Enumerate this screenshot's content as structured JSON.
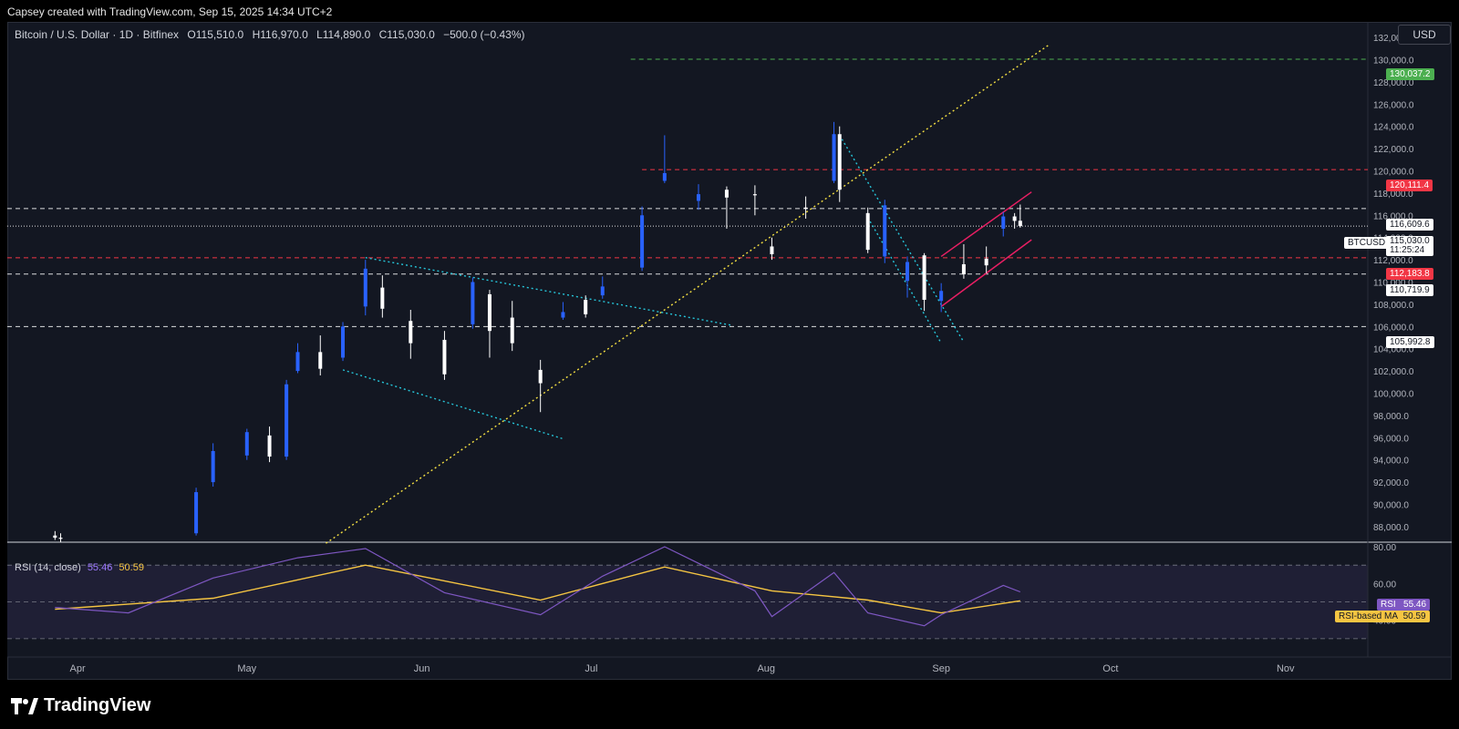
{
  "header": {
    "attribution": "Capsey created with TradingView.com, Sep 15, 2025 14:34 UTC+2"
  },
  "legend": {
    "symbol": "Bitcoin / U.S. Dollar · 1D · Bitfinex",
    "open": "O115,510.0",
    "high": "H116,970.0",
    "low": "L114,890.0",
    "close": "C115,030.0",
    "change": "−500.0 (−0.43%)"
  },
  "currency_button": "USD",
  "rsi_legend": {
    "label": "RSI (14, close)",
    "rsi_value": "55.46",
    "ma_value": "50.59"
  },
  "price_tags": {
    "level_130037": "130,037.2",
    "level_120111": "120,111.4",
    "level_116609": "116,609.6",
    "last_price": "115,030.0",
    "countdown": "11:25:24",
    "symbol_label": "BTCUSD",
    "level_112183": "112,183.8",
    "level_110719": "110,719.9",
    "level_105992": "105,992.8",
    "rsi_tag_label": "RSI",
    "rsi_tag_value": "55.46",
    "ma_tag_label": "RSI-based MA",
    "ma_tag_value": "50.59"
  },
  "brand": {
    "name": "TradingView"
  },
  "colors": {
    "up": "#2962ff",
    "down": "#ffffff",
    "background": "#131722",
    "green_line": "#4caf50",
    "red_line": "#f23645",
    "pink_channel": "#e91e63",
    "cyan_line": "#26c6da",
    "yellow_line": "#f5e042",
    "rsi": "#7e57c2",
    "rsi_ma": "#f5c542"
  },
  "chart_data": {
    "type": "candlestick",
    "title": "Bitcoin / U.S. Dollar · 1D · Bitfinex",
    "price_axis": {
      "ticks": [
        "132,000.0",
        "130,000.0",
        "128,000.0",
        "126,000.0",
        "124,000.0",
        "122,000.0",
        "120,000.0",
        "118,000.0",
        "116,000.0",
        "114,000.0",
        "112,000.0",
        "110,000.0",
        "108,000.0",
        "106,000.0",
        "104,000.0",
        "102,000.0",
        "100,000.0",
        "98,000.0",
        "96,000.0",
        "94,000.0",
        "92,000.0",
        "90,000.0",
        "88,000.0"
      ],
      "range": [
        86600,
        133400
      ]
    },
    "time_axis": {
      "labels": [
        "Apr",
        "May",
        "Jun",
        "Jul",
        "Aug",
        "Sep",
        "Oct",
        "Nov"
      ]
    },
    "horizontal_levels": [
      {
        "value": 130037.2,
        "style": "dashed",
        "color": "green"
      },
      {
        "value": 120111.4,
        "style": "dashed",
        "color": "red"
      },
      {
        "value": 116609.6,
        "style": "dashed",
        "color": "white"
      },
      {
        "value": 115030.0,
        "style": "dotted",
        "color": "white"
      },
      {
        "value": 112183.8,
        "style": "dashed",
        "color": "red"
      },
      {
        "value": 110719.9,
        "style": "dashed",
        "color": "white"
      },
      {
        "value": 105992.8,
        "style": "dashed",
        "color": "white"
      }
    ],
    "candles": [
      {
        "date": "2025-03-28",
        "o": 87200,
        "h": 87600,
        "l": 86800,
        "c": 87000
      },
      {
        "date": "2025-03-29",
        "o": 87000,
        "h": 87400,
        "l": 86600,
        "c": 86900
      },
      {
        "date": "2025-04-22",
        "o": 87400,
        "h": 91500,
        "l": 87200,
        "c": 91100
      },
      {
        "date": "2025-04-25",
        "o": 92000,
        "h": 95500,
        "l": 91600,
        "c": 94800
      },
      {
        "date": "2025-05-01",
        "o": 94400,
        "h": 96800,
        "l": 94000,
        "c": 96500
      },
      {
        "date": "2025-05-05",
        "o": 96200,
        "h": 97000,
        "l": 93800,
        "c": 94300
      },
      {
        "date": "2025-05-08",
        "o": 94300,
        "h": 101200,
        "l": 94000,
        "c": 100800
      },
      {
        "date": "2025-05-10",
        "o": 102000,
        "h": 104500,
        "l": 101800,
        "c": 103700
      },
      {
        "date": "2025-05-14",
        "o": 103700,
        "h": 105200,
        "l": 101600,
        "c": 102200
      },
      {
        "date": "2025-05-18",
        "o": 103200,
        "h": 106400,
        "l": 102900,
        "c": 106000
      },
      {
        "date": "2025-05-22",
        "o": 107800,
        "h": 112000,
        "l": 107000,
        "c": 111200
      },
      {
        "date": "2025-05-25",
        "o": 109500,
        "h": 110600,
        "l": 106800,
        "c": 107600
      },
      {
        "date": "2025-05-30",
        "o": 106500,
        "h": 107500,
        "l": 103100,
        "c": 104500
      },
      {
        "date": "2025-06-05",
        "o": 104800,
        "h": 105600,
        "l": 101200,
        "c": 101700
      },
      {
        "date": "2025-06-10",
        "o": 106200,
        "h": 110400,
        "l": 105800,
        "c": 110000
      },
      {
        "date": "2025-06-13",
        "o": 108900,
        "h": 109300,
        "l": 103200,
        "c": 105600
      },
      {
        "date": "2025-06-17",
        "o": 106800,
        "h": 108300,
        "l": 103800,
        "c": 104500
      },
      {
        "date": "2025-06-22",
        "o": 102100,
        "h": 103000,
        "l": 98300,
        "c": 100900
      },
      {
        "date": "2025-06-26",
        "o": 106800,
        "h": 108200,
        "l": 106600,
        "c": 107300
      },
      {
        "date": "2025-06-30",
        "o": 108400,
        "h": 108800,
        "l": 106800,
        "c": 107100
      },
      {
        "date": "2025-07-03",
        "o": 108800,
        "h": 110500,
        "l": 108500,
        "c": 109600
      },
      {
        "date": "2025-07-10",
        "o": 111300,
        "h": 116800,
        "l": 111000,
        "c": 116000
      },
      {
        "date": "2025-07-14",
        "o": 119100,
        "h": 123200,
        "l": 118900,
        "c": 119800
      },
      {
        "date": "2025-07-20",
        "o": 117300,
        "h": 118800,
        "l": 116500,
        "c": 117900
      },
      {
        "date": "2025-07-25",
        "o": 118300,
        "h": 118600,
        "l": 114800,
        "c": 117600
      },
      {
        "date": "2025-07-30",
        "o": 117900,
        "h": 118700,
        "l": 116000,
        "c": 117800
      },
      {
        "date": "2025-08-02",
        "o": 113200,
        "h": 114000,
        "l": 112000,
        "c": 112500
      },
      {
        "date": "2025-08-08",
        "o": 116700,
        "h": 117700,
        "l": 115700,
        "c": 116600
      },
      {
        "date": "2025-08-13",
        "o": 119100,
        "h": 124400,
        "l": 118900,
        "c": 123300
      },
      {
        "date": "2025-08-14",
        "o": 123300,
        "h": 124000,
        "l": 117200,
        "c": 118300
      },
      {
        "date": "2025-08-19",
        "o": 116200,
        "h": 116700,
        "l": 112600,
        "c": 112900
      },
      {
        "date": "2025-08-22",
        "o": 112300,
        "h": 117400,
        "l": 111700,
        "c": 116900
      },
      {
        "date": "2025-08-26",
        "o": 110100,
        "h": 112300,
        "l": 108600,
        "c": 111800
      },
      {
        "date": "2025-08-29",
        "o": 112400,
        "h": 112600,
        "l": 107400,
        "c": 108400
      },
      {
        "date": "2025-09-01",
        "o": 108300,
        "h": 109900,
        "l": 107300,
        "c": 109200
      },
      {
        "date": "2025-09-05",
        "o": 111600,
        "h": 113400,
        "l": 110300,
        "c": 110700
      },
      {
        "date": "2025-09-09",
        "o": 112100,
        "h": 113200,
        "l": 110800,
        "c": 111500
      },
      {
        "date": "2025-09-12",
        "o": 114800,
        "h": 116300,
        "l": 114100,
        "c": 115900
      },
      {
        "date": "2025-09-14",
        "o": 115900,
        "h": 116200,
        "l": 114800,
        "c": 115500
      },
      {
        "date": "2025-09-15",
        "o": 115510,
        "h": 116970,
        "l": 114890,
        "c": 115030
      }
    ],
    "rsi": {
      "axis_ticks": [
        "80.00",
        "60.00",
        "40.00"
      ],
      "range": [
        20,
        82
      ],
      "reference_levels": [
        70,
        50,
        30
      ],
      "rsi_points": [
        {
          "date": "2025-03-28",
          "v": 47
        },
        {
          "date": "2025-04-10",
          "v": 44
        },
        {
          "date": "2025-04-25",
          "v": 63
        },
        {
          "date": "2025-05-10",
          "v": 74
        },
        {
          "date": "2025-05-22",
          "v": 79
        },
        {
          "date": "2025-06-05",
          "v": 55
        },
        {
          "date": "2025-06-22",
          "v": 43
        },
        {
          "date": "2025-07-03",
          "v": 64
        },
        {
          "date": "2025-07-14",
          "v": 80
        },
        {
          "date": "2025-07-30",
          "v": 56
        },
        {
          "date": "2025-08-02",
          "v": 42
        },
        {
          "date": "2025-08-13",
          "v": 66
        },
        {
          "date": "2025-08-19",
          "v": 44
        },
        {
          "date": "2025-08-29",
          "v": 37
        },
        {
          "date": "2025-09-01",
          "v": 43
        },
        {
          "date": "2025-09-12",
          "v": 59
        },
        {
          "date": "2025-09-15",
          "v": 55.46
        }
      ],
      "ma_points": [
        {
          "date": "2025-03-28",
          "v": 46
        },
        {
          "date": "2025-04-25",
          "v": 52
        },
        {
          "date": "2025-05-22",
          "v": 70
        },
        {
          "date": "2025-06-22",
          "v": 51
        },
        {
          "date": "2025-07-14",
          "v": 69
        },
        {
          "date": "2025-08-02",
          "v": 56
        },
        {
          "date": "2025-08-19",
          "v": 51
        },
        {
          "date": "2025-09-01",
          "v": 44
        },
        {
          "date": "2025-09-15",
          "v": 50.59
        }
      ]
    },
    "trendlines": [
      {
        "name": "yellow-support",
        "color": "yellow",
        "from": {
          "date": "2025-05-15",
          "price": 86500
        },
        "to": {
          "date": "2025-09-20",
          "price": 131300
        }
      },
      {
        "name": "cyan-upper-1",
        "color": "cyan",
        "from": {
          "date": "2025-05-22",
          "price": 112200
        },
        "to": {
          "date": "2025-07-26",
          "price": 106100
        }
      },
      {
        "name": "cyan-lower-1",
        "color": "cyan",
        "from": {
          "date": "2025-05-18",
          "price": 102100
        },
        "to": {
          "date": "2025-06-26",
          "price": 95900
        }
      },
      {
        "name": "cyan-upper-2",
        "color": "cyan",
        "from": {
          "date": "2025-08-14",
          "price": 123200
        },
        "to": {
          "date": "2025-09-05",
          "price": 104600
        }
      },
      {
        "name": "cyan-lower-2",
        "color": "cyan",
        "from": {
          "date": "2025-08-19",
          "price": 115800
        },
        "to": {
          "date": "2025-09-01",
          "price": 104500
        }
      },
      {
        "name": "pink-channel-upper",
        "color": "pink",
        "from": {
          "date": "2025-09-01",
          "price": 112300
        },
        "to": {
          "date": "2025-09-17",
          "price": 118100
        }
      },
      {
        "name": "pink-channel-lower",
        "color": "pink",
        "from": {
          "date": "2025-09-01",
          "price": 107800
        },
        "to": {
          "date": "2025-09-17",
          "price": 113800
        }
      }
    ]
  }
}
